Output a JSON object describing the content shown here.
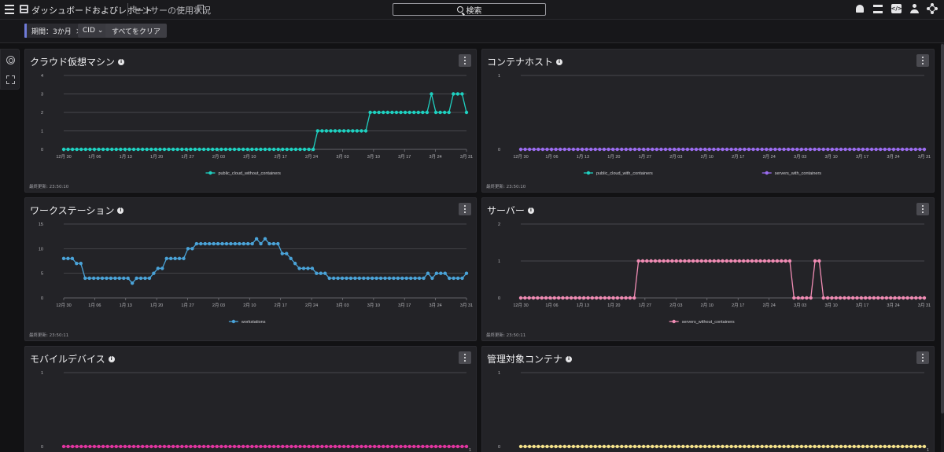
{
  "header": {
    "app_title": "ダッシュボードおよびレポート",
    "page_title": "センサーの使用状況",
    "search_label": "検索"
  },
  "icons": {
    "menu": "hamburger-menu-icon",
    "dashboard": "dashboard-icon",
    "bookmark": "bookmark-icon",
    "search": "search-icon",
    "notifications": "bell-icon",
    "layers": "stack-icon",
    "code": "code-icon",
    "user": "user-icon",
    "theme": "sun-icon",
    "settings": "gear-icon",
    "expand": "expand-icon",
    "info": "info-icon",
    "more": "kebab-menu-icon"
  },
  "filters": {
    "period_label": "期間：3か月",
    "period_close": "×",
    "cid_label": "CID",
    "cid_chevron": "⌄",
    "clear_all": "すべてをクリア"
  },
  "x_ticks": [
    "12月 30",
    "1月 06",
    "1月 13",
    "1月 20",
    "1月 27",
    "2月 03",
    "2月 10",
    "2月 17",
    "2月 24",
    "3月 03",
    "3月 10",
    "3月 17",
    "3月 24",
    "3月 31"
  ],
  "panels": [
    {
      "title": "クラウド仮想マシン",
      "updated": "最終更新: 23:50:10",
      "chart_data": {
        "type": "line",
        "ylim": [
          0,
          4
        ],
        "yticks": [
          "0",
          "1",
          "2",
          "3",
          "4"
        ],
        "series": [
          {
            "name": "public_cloud_without_containers",
            "color": "#1fd1c1",
            "values": [
              0,
              0,
              0,
              0,
              0,
              0,
              0,
              0,
              0,
              0,
              0,
              0,
              0,
              0,
              0,
              0,
              0,
              0,
              0,
              0,
              0,
              0,
              0,
              0,
              0,
              0,
              0,
              0,
              0,
              0,
              0,
              0,
              0,
              0,
              0,
              0,
              0,
              0,
              0,
              0,
              0,
              0,
              0,
              0,
              0,
              0,
              0,
              0,
              0,
              0,
              0,
              0,
              0,
              0,
              0,
              0,
              0,
              0,
              1,
              1,
              1,
              1,
              1,
              1,
              1,
              1,
              1,
              1,
              1,
              1,
              2,
              2,
              2,
              2,
              2,
              2,
              2,
              2,
              2,
              2,
              2,
              2,
              2,
              2,
              3,
              2,
              2,
              2,
              2,
              3,
              3,
              3,
              2
            ]
          }
        ],
        "legend": [
          {
            "name": "public_cloud_without_containers",
            "color": "#1fd1c1"
          }
        ]
      }
    },
    {
      "title": "コンテナホスト",
      "updated": "最終更新: 23:50:10",
      "chart_data": {
        "type": "line",
        "ylim": [
          0,
          1
        ],
        "yticks": [
          "0",
          "1"
        ],
        "series": [
          {
            "name": "servers_with_containers",
            "color": "#9b6cf0",
            "values": [
              0,
              0,
              0,
              0,
              0,
              0,
              0,
              0,
              0,
              0,
              0,
              0,
              0,
              0,
              0,
              0,
              0,
              0,
              0,
              0,
              0,
              0,
              0,
              0,
              0,
              0,
              0,
              0,
              0,
              0,
              0,
              0,
              0,
              0,
              0,
              0,
              0,
              0,
              0,
              0,
              0,
              0,
              0,
              0,
              0,
              0,
              0,
              0,
              0,
              0,
              0,
              0,
              0,
              0,
              0,
              0,
              0,
              0,
              0,
              0,
              0,
              0,
              0,
              0,
              0,
              0,
              0,
              0,
              0,
              0,
              0,
              0,
              0,
              0,
              0,
              0,
              0,
              0,
              0,
              0,
              0,
              0,
              0,
              0,
              0,
              0,
              0,
              0,
              0,
              0,
              0,
              0,
              0
            ]
          }
        ],
        "legend": [
          {
            "name": "public_cloud_with_containers",
            "color": "#1fd1c1"
          },
          {
            "name": "servers_with_containers",
            "color": "#9b6cf0"
          }
        ]
      }
    },
    {
      "title": "ワークステーション",
      "updated": "最終更新: 23:50:11",
      "chart_data": {
        "type": "line",
        "ylim": [
          0,
          15
        ],
        "yticks": [
          "0",
          "5",
          "10",
          "15"
        ],
        "series": [
          {
            "name": "workstations",
            "color": "#4aa3d8",
            "values": [
              8,
              8,
              8,
              7,
              7,
              4,
              4,
              4,
              4,
              4,
              4,
              4,
              4,
              4,
              4,
              4,
              3,
              4,
              4,
              4,
              4,
              5,
              6,
              6,
              8,
              8,
              8,
              8,
              8,
              10,
              10,
              11,
              11,
              11,
              11,
              11,
              11,
              11,
              11,
              11,
              11,
              11,
              11,
              11,
              11,
              12,
              11,
              12,
              11,
              11,
              11,
              9,
              9,
              8,
              7,
              6,
              6,
              6,
              6,
              5,
              5,
              5,
              4,
              4,
              4,
              4,
              4,
              4,
              4,
              4,
              4,
              4,
              4,
              4,
              4,
              4,
              4,
              4,
              4,
              4,
              4,
              4,
              4,
              4,
              4,
              5,
              4,
              5,
              5,
              5,
              4,
              4,
              4,
              4,
              5
            ]
          }
        ],
        "legend": [
          {
            "name": "workstations",
            "color": "#4aa3d8"
          }
        ]
      }
    },
    {
      "title": "サーバー",
      "updated": "最終更新: 23:50:11",
      "chart_data": {
        "type": "line",
        "ylim": [
          0,
          2
        ],
        "yticks": [
          "0",
          "1",
          "2"
        ],
        "series": [
          {
            "name": "servers_without_containers",
            "color": "#f08cb4",
            "values": [
              0,
              0,
              0,
              0,
              0,
              0,
              0,
              0,
              0,
              0,
              0,
              0,
              0,
              0,
              0,
              0,
              0,
              0,
              0,
              0,
              0,
              0,
              0,
              0,
              0,
              0,
              0,
              0,
              1,
              1,
              1,
              1,
              1,
              1,
              1,
              1,
              1,
              1,
              1,
              1,
              1,
              1,
              1,
              1,
              1,
              1,
              1,
              1,
              1,
              1,
              1,
              1,
              1,
              1,
              1,
              1,
              1,
              1,
              1,
              1,
              1,
              1,
              1,
              1,
              1,
              0,
              0,
              0,
              0,
              0,
              1,
              1,
              0,
              0,
              0,
              0,
              0,
              0,
              0,
              0,
              0,
              0,
              0,
              0,
              0,
              0,
              0,
              0,
              0,
              0,
              0,
              0,
              0,
              0,
              0,
              0,
              0
            ]
          }
        ],
        "legend": [
          {
            "name": "servers_without_containers",
            "color": "#f08cb4"
          }
        ]
      }
    },
    {
      "title": "モバイルデバイス",
      "updated": "",
      "chart_data": {
        "type": "line",
        "ylim": [
          0,
          1
        ],
        "yticks": [
          "0",
          "1"
        ],
        "series": [
          {
            "name": "",
            "color": "#e0359f",
            "values": [
              0,
              0,
              0,
              0,
              0,
              0,
              0,
              0,
              0,
              0,
              0,
              0,
              0,
              0,
              0,
              0,
              0,
              0,
              0,
              0,
              0,
              0,
              0,
              0,
              0,
              0,
              0,
              0,
              0,
              0,
              0,
              0,
              0,
              0,
              0,
              0,
              0,
              0,
              0,
              0,
              0,
              0,
              0,
              0,
              0,
              0,
              0,
              0,
              0,
              0,
              0,
              0,
              0,
              0,
              0,
              0,
              0,
              0,
              0,
              0,
              0,
              0,
              0,
              0,
              0,
              0,
              0,
              0,
              0,
              0,
              0,
              0,
              0,
              0,
              0,
              0,
              0,
              0,
              0,
              0,
              0,
              0,
              0,
              0,
              0,
              0,
              0,
              0,
              0,
              0,
              0,
              0,
              0
            ]
          }
        ],
        "legend": []
      }
    },
    {
      "title": "管理対象コンテナ",
      "updated": "",
      "chart_data": {
        "type": "line",
        "ylim": [
          0,
          1
        ],
        "yticks": [
          "0",
          "1"
        ],
        "series": [
          {
            "name": "",
            "color": "#f2e08a",
            "values": [
              0,
              0,
              0,
              0,
              0,
              0,
              0,
              0,
              0,
              0,
              0,
              0,
              0,
              0,
              0,
              0,
              0,
              0,
              0,
              0,
              0,
              0,
              0,
              0,
              0,
              0,
              0,
              0,
              0,
              0,
              0,
              0,
              0,
              0,
              0,
              0,
              0,
              0,
              0,
              0,
              0,
              0,
              0,
              0,
              0,
              0,
              0,
              0,
              0,
              0,
              0,
              0,
              0,
              0,
              0,
              0,
              0,
              0,
              0,
              0,
              0,
              0,
              0,
              0,
              0,
              0,
              0,
              0,
              0,
              0,
              0,
              0,
              0,
              0,
              0,
              0,
              0,
              0,
              0,
              0,
              0,
              0,
              0,
              0,
              0,
              0,
              0,
              0,
              0,
              0,
              0,
              0,
              0
            ]
          }
        ],
        "legend": []
      }
    }
  ]
}
